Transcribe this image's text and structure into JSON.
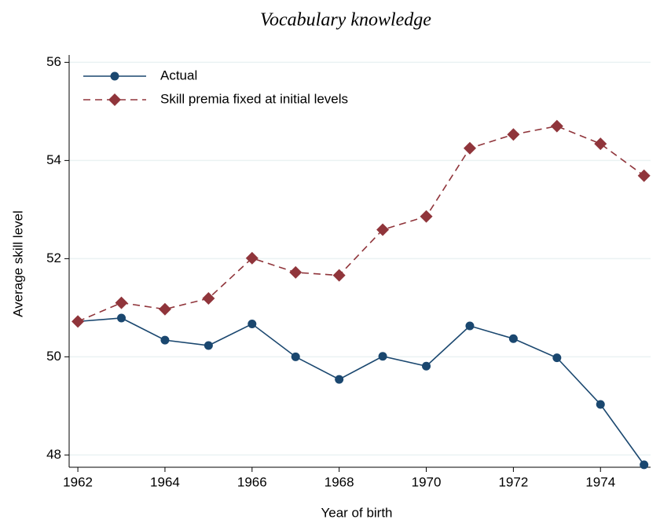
{
  "chart_data": {
    "type": "line",
    "title": "Vocabulary knowledge",
    "x_label": "Year of birth",
    "y_label": "Average skill level",
    "x": [
      1962,
      1963,
      1964,
      1965,
      1966,
      1967,
      1968,
      1969,
      1970,
      1971,
      1972,
      1973,
      1974,
      1975
    ],
    "series": [
      {
        "name": "Actual",
        "color": "#1a476f",
        "marker": "circle",
        "dashed": false,
        "values": [
          50.72,
          50.79,
          50.34,
          50.23,
          50.67,
          50.0,
          49.54,
          50.01,
          49.81,
          50.63,
          50.37,
          49.98,
          49.03,
          47.8
        ]
      },
      {
        "name": "Skill premia fixed at initial levels",
        "color": "#90353b",
        "marker": "diamond",
        "dashed": true,
        "values": [
          50.72,
          51.1,
          50.97,
          51.19,
          52.01,
          51.72,
          51.66,
          52.59,
          52.86,
          54.25,
          54.53,
          54.7,
          54.34,
          53.69
        ]
      }
    ],
    "xlim": [
      1961.8,
      1975.15
    ],
    "xticks": [
      1962,
      1964,
      1966,
      1968,
      1970,
      1972,
      1974
    ],
    "ylim": [
      47.75,
      56.15
    ],
    "yticks": [
      48,
      50,
      52,
      54,
      56
    ],
    "grid": true,
    "legend": "top-left"
  }
}
